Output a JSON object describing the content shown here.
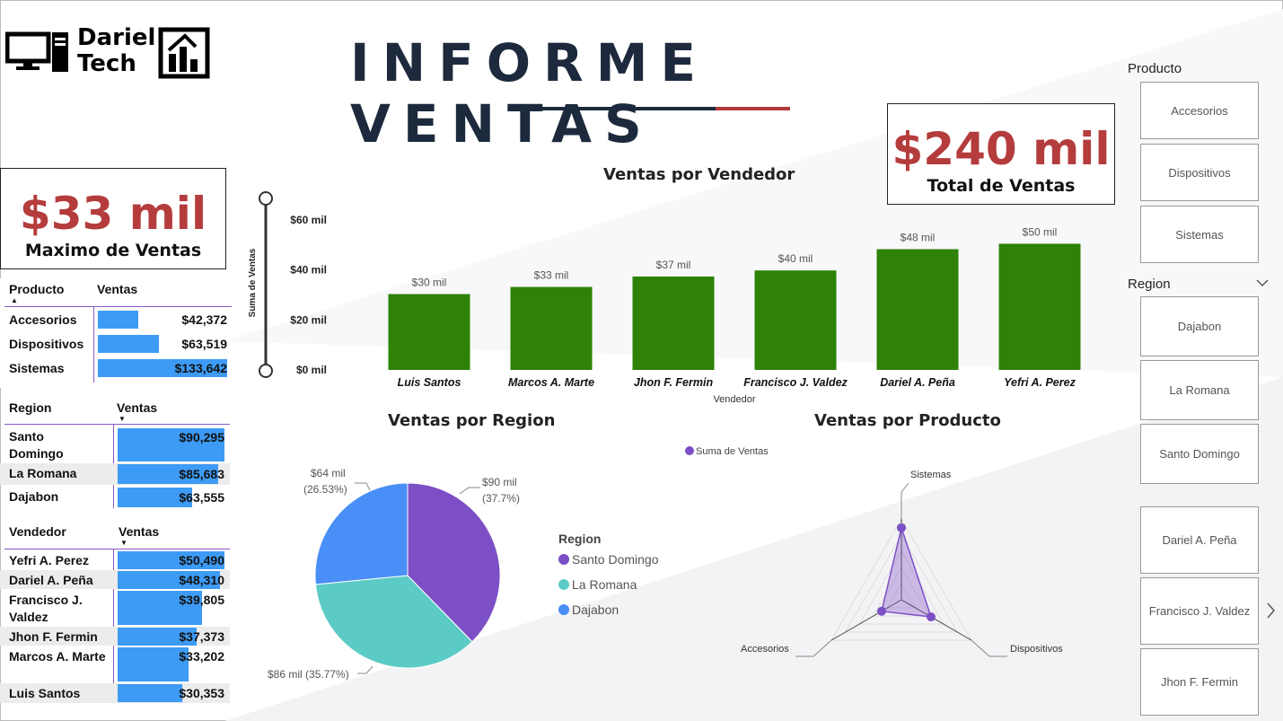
{
  "logo": {
    "line1": "Dariel",
    "line2": "Tech"
  },
  "title": "INFORME VENTAS",
  "kpi_max": {
    "value": "$33 mil",
    "label": "Maximo de Ventas"
  },
  "kpi_total": {
    "value": "$240 mil",
    "label": "Total de Ventas"
  },
  "tables": {
    "producto": {
      "headers": [
        "Producto",
        "Ventas"
      ],
      "rows": [
        {
          "name": "Accesorios",
          "value": "$42,372",
          "v": 42372
        },
        {
          "name": "Dispositivos",
          "value": "$63,519",
          "v": 63519
        },
        {
          "name": "Sistemas",
          "value": "$133,642",
          "v": 133642
        }
      ]
    },
    "region": {
      "headers": [
        "Region",
        "Ventas"
      ],
      "rows": [
        {
          "name": "Santo Domingo",
          "value": "$90,295",
          "v": 90295
        },
        {
          "name": "La Romana",
          "value": "$85,683",
          "v": 85683
        },
        {
          "name": "Dajabon",
          "value": "$63,555",
          "v": 63555
        }
      ]
    },
    "vendedor": {
      "headers": [
        "Vendedor",
        "Ventas"
      ],
      "rows": [
        {
          "name": "Yefri A. Perez",
          "value": "$50,490",
          "v": 50490
        },
        {
          "name": "Dariel A. Peña",
          "value": "$48,310",
          "v": 48310
        },
        {
          "name": "Francisco J. Valdez",
          "value": "$39,805",
          "v": 39805
        },
        {
          "name": "Jhon F. Fermin",
          "value": "$37,373",
          "v": 37373
        },
        {
          "name": "Marcos A. Marte",
          "value": "$33,202",
          "v": 33202
        },
        {
          "name": "Luis Santos",
          "value": "$30,353",
          "v": 30353
        }
      ]
    }
  },
  "slicers": {
    "producto": {
      "title": "Producto",
      "items": [
        "Accesorios",
        "Dispositivos",
        "Sistemas"
      ]
    },
    "region": {
      "title": "Region",
      "items": [
        "Dajabon",
        "La Romana",
        "Santo Domingo"
      ]
    },
    "vendedor": {
      "items": [
        "Dariel A. Peña",
        "Francisco J. Valdez",
        "Jhon F. Fermin"
      ]
    }
  },
  "colors": {
    "accent_red": "#b53c3c",
    "bar_green": "#2e8207",
    "table_bar": "#3d9bf5",
    "purple": "#7d4fc6",
    "teal": "#5ccbc5",
    "blue": "#4a8ef7",
    "navy": "#1d2a3d"
  },
  "chart_data": [
    {
      "type": "bar",
      "title": "Ventas por Vendedor",
      "xlabel": "Vendedor",
      "ylabel": "Suma de Ventas",
      "categories": [
        "Luis Santos",
        "Marcos A. Marte",
        "Jhon F. Fermin",
        "Francisco J. Valdez",
        "Dariel A. Peña",
        "Yefri A. Perez"
      ],
      "values": [
        30353,
        33202,
        37373,
        39805,
        48310,
        50490
      ],
      "data_labels": [
        "$30 mil",
        "$33 mil",
        "$37 mil",
        "$40 mil",
        "$48 mil",
        "$50 mil"
      ],
      "y_ticks": [
        "$60 mil",
        "$40 mil",
        "$20 mil",
        "$0 mil"
      ],
      "ylim": [
        0,
        60000
      ]
    },
    {
      "type": "pie",
      "title": "Ventas por Region",
      "legend_title": "Region",
      "labels": [
        "Santo Domingo",
        "La Romana",
        "Dajabon"
      ],
      "values": [
        90295,
        85683,
        63555
      ],
      "data_labels": [
        [
          "$90 mil",
          "(37.7%)"
        ],
        [
          "$86 mil (35.77%)"
        ],
        [
          "$64 mil",
          "(26.53%)"
        ]
      ]
    },
    {
      "type": "radar",
      "title": "Ventas por Producto",
      "legend": "Suma de Ventas",
      "axes": [
        "Sistemas",
        "Dispositivos",
        "Accesorios"
      ],
      "values": [
        133642,
        63519,
        42372
      ]
    }
  ]
}
